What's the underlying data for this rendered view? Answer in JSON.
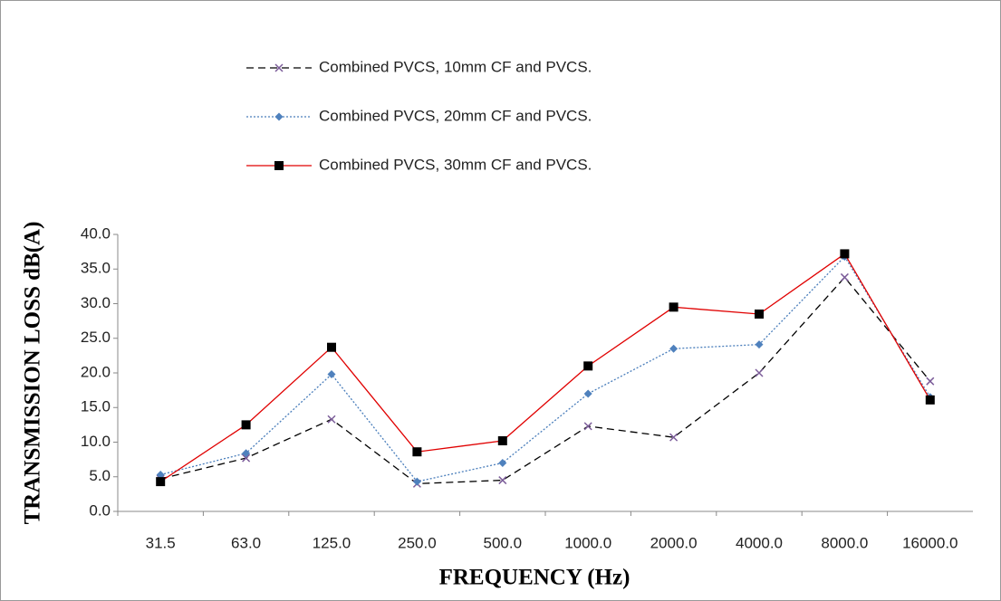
{
  "chart_data": {
    "type": "line",
    "categories": [
      "31.5",
      "63.0",
      "125.0",
      "250.0",
      "500.0",
      "1000.0",
      "2000.0",
      "4000.0",
      "8000.0",
      "16000.0"
    ],
    "series": [
      {
        "name": "Combined PVCS, 10mm CF and PVCS.",
        "color": "#000000",
        "marker_color": "#7b5c99",
        "marker": "x",
        "dash": "dashed",
        "values": [
          4.7,
          7.7,
          13.3,
          4.0,
          4.5,
          12.3,
          10.7,
          20.0,
          33.8,
          18.8
        ]
      },
      {
        "name": "Combined PVCS, 20mm CF and PVCS.",
        "color": "#4a7ebb",
        "marker_color": "#4f81bd",
        "marker": "diamond",
        "dash": "dotted",
        "values": [
          5.3,
          8.4,
          19.8,
          4.3,
          7.0,
          17.0,
          23.5,
          24.1,
          36.8,
          16.5
        ]
      },
      {
        "name": "Combined PVCS, 30mm CF and PVCS.",
        "color": "#e00000",
        "marker_color": "#000000",
        "marker": "square",
        "dash": "solid",
        "values": [
          4.3,
          12.5,
          23.7,
          8.6,
          10.2,
          21.0,
          29.5,
          28.5,
          37.2,
          16.1
        ]
      }
    ],
    "ylim": [
      0,
      40
    ],
    "yticks": [
      {
        "value": 0,
        "label": "0.0"
      },
      {
        "value": 5,
        "label": "5.0"
      },
      {
        "value": 10,
        "label": "10.0"
      },
      {
        "value": 15,
        "label": "15.0"
      },
      {
        "value": 20,
        "label": "20.0"
      },
      {
        "value": 25,
        "label": "25.0"
      },
      {
        "value": 30,
        "label": "30.0"
      },
      {
        "value": 35,
        "label": "35.0"
      },
      {
        "value": 40,
        "label": "40.0"
      }
    ],
    "y_label": "TRANSMISSION LOSS dB(A)",
    "x_label": "FREQUENCY (Hz)",
    "grid": false,
    "legend": "top"
  }
}
